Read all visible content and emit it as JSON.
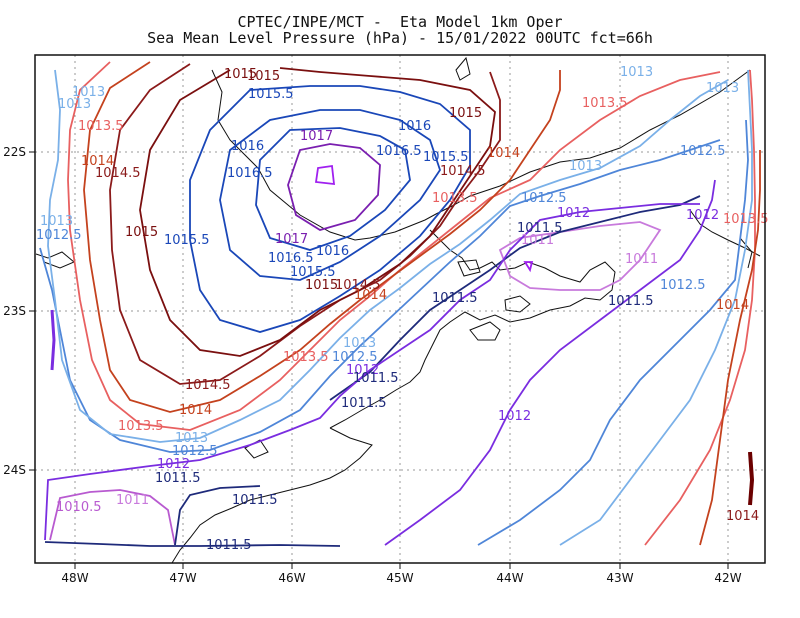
{
  "title": {
    "line1": "CPTEC/INPE/MCT -  Eta Model 1km Oper",
    "line2": "Sea Mean Level Pressure (hPa) - 15/01/2022 00UTC fct=66h"
  },
  "axes": {
    "x_ticks": [
      "48W",
      "47W",
      "46W",
      "45W",
      "44W",
      "43W",
      "42W"
    ],
    "y_ticks": [
      "22S",
      "23S",
      "24S"
    ]
  },
  "contour_labels": [
    {
      "text": "1015",
      "color": "#7a0f0f"
    },
    {
      "text": "1015.5",
      "color": "#1a47b8"
    },
    {
      "text": "1016",
      "color": "#1a47b8"
    },
    {
      "text": "1016.5",
      "color": "#1a47b8"
    },
    {
      "text": "1017",
      "color": "#7a1fb0"
    },
    {
      "text": "1014.5",
      "color": "#8b1a1a"
    },
    {
      "text": "1014",
      "color": "#c4421e"
    },
    {
      "text": "1013.5",
      "color": "#e86060"
    },
    {
      "text": "1013",
      "color": "#7ab0e8"
    },
    {
      "text": "1012.5",
      "color": "#4f86d8"
    },
    {
      "text": "1012",
      "color": "#7a2de0"
    },
    {
      "text": "1011.5",
      "color": "#1e2a7a"
    },
    {
      "text": "1011",
      "color": "#c87adc"
    },
    {
      "text": "1010.5",
      "color": "#b85ad0"
    }
  ]
}
